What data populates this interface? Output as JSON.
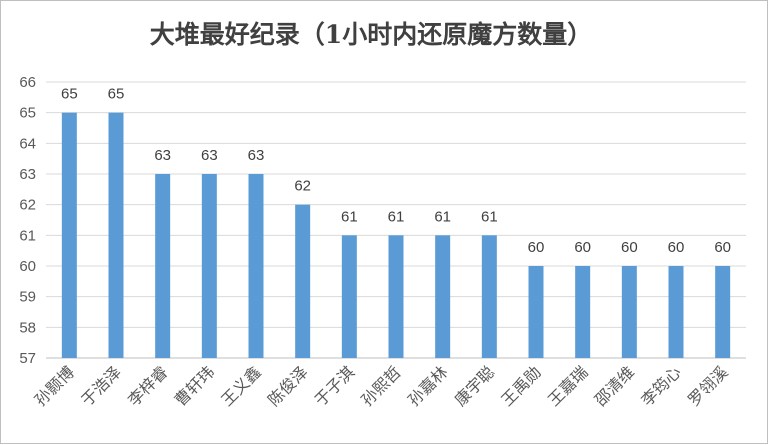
{
  "chart_data": {
    "type": "bar",
    "title": "大堆最好纪录（1小时内还原魔方数量）",
    "xlabel": "",
    "ylabel": "",
    "ylim": [
      57,
      66
    ],
    "yticks": [
      57,
      58,
      59,
      60,
      61,
      62,
      63,
      64,
      65,
      66
    ],
    "grid": true,
    "legend": "none",
    "categories": [
      "孙颢博",
      "于浩泽",
      "李梓睿",
      "曹轩玮",
      "王义鑫",
      "陈俊泽",
      "于子淇",
      "孙熙哲",
      "孙嘉林",
      "康宇聪",
      "王禹勋",
      "王嘉瑞",
      "邵清维",
      "李筠心",
      "罗翎溪"
    ],
    "values": [
      65,
      65,
      63,
      63,
      63,
      62,
      61,
      61,
      61,
      61,
      60,
      60,
      60,
      60,
      60
    ],
    "data_labels": true,
    "bar_color": "#5b9bd5",
    "grid_color": "#d9d9d9",
    "text_color": "#595959"
  }
}
